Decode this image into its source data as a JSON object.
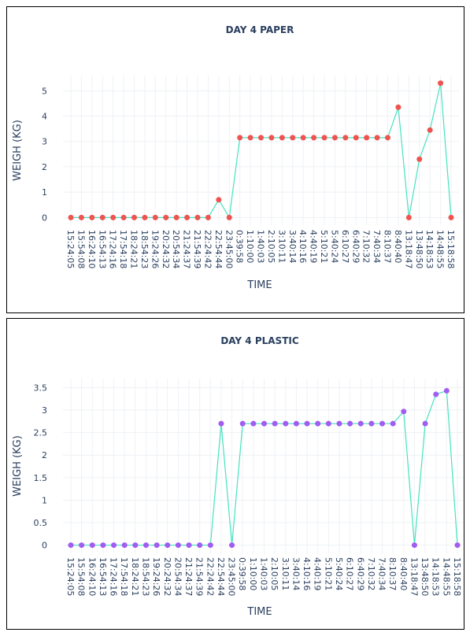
{
  "chart_data": [
    {
      "type": "line",
      "title": "DAY 4 PAPER",
      "x_label": "TIME",
      "y_label": "WEIGH (KG)",
      "categories": [
        "15:24:05",
        "15:54:08",
        "16:24:10",
        "16:54:13",
        "17:24:16",
        "17:54:18",
        "18:24:21",
        "18:54:23",
        "19:24:26",
        "20:24:32",
        "20:54:34",
        "21:24:37",
        "21:54:39",
        "22:24:42",
        "22:54:44",
        "23:45:00",
        "0:39:58",
        "1:10:00",
        "1:40:03",
        "2:10:05",
        "3:10:11",
        "3:40:14",
        "4:10:16",
        "4:40:19",
        "5:10:21",
        "5:40:24",
        "6:10:27",
        "6:40:29",
        "7:10:32",
        "7:40:34",
        "8:10:37",
        "8:40:40",
        "13:18:47",
        "13:48:50",
        "14:18:53",
        "14:48:55",
        "15:18:58"
      ],
      "series": [
        {
          "line_color": "#45e3bf",
          "color": "#f0534f",
          "values": [
            0,
            0,
            0,
            0,
            0,
            0,
            0,
            0,
            0,
            0,
            0,
            0,
            0,
            0,
            0.7,
            0,
            3.15,
            3.15,
            3.15,
            3.15,
            3.15,
            3.15,
            3.15,
            3.15,
            3.15,
            3.15,
            3.15,
            3.15,
            3.15,
            3.15,
            3.15,
            4.35,
            0,
            2.3,
            3.45,
            5.3,
            0
          ]
        }
      ],
      "ylim": [
        -0.3,
        5.6
      ],
      "yticks": [
        0,
        1,
        2,
        3,
        4,
        5
      ],
      "grid": true
    },
    {
      "type": "line",
      "title": "DAY 4 PLASTIC",
      "x_label": "TIME",
      "y_label": "WEIGH (KG)",
      "categories": [
        "15:24:05",
        "15:54:08",
        "16:24:10",
        "16:54:13",
        "17:24:16",
        "17:54:18",
        "18:24:21",
        "18:54:23",
        "19:24:26",
        "20:24:32",
        "20:54:34",
        "21:24:37",
        "21:54:39",
        "22:24:42",
        "22:54:44",
        "23:45:00",
        "0:39:58",
        "1:10:00",
        "1:40:03",
        "2:10:05",
        "3:10:11",
        "3:40:14",
        "4:10:16",
        "4:40:19",
        "5:10:21",
        "5:40:24",
        "6:10:27",
        "6:40:29",
        "7:10:32",
        "7:40:34",
        "8:10:37",
        "8:40:40",
        "13:18:47",
        "13:48:50",
        "14:18:53",
        "14:48:55",
        "15:18:58"
      ],
      "series": [
        {
          "line_color": "#45e3bf",
          "color": "#a25cf2",
          "values": [
            0,
            0,
            0,
            0,
            0,
            0,
            0,
            0,
            0,
            0,
            0,
            0,
            0,
            0,
            2.7,
            0,
            2.7,
            2.7,
            2.7,
            2.7,
            2.7,
            2.7,
            2.7,
            2.7,
            2.7,
            2.7,
            2.7,
            2.7,
            2.7,
            2.7,
            2.7,
            2.97,
            0,
            2.7,
            3.35,
            3.43,
            0
          ]
        }
      ],
      "ylim": [
        -0.2,
        3.7
      ],
      "yticks": [
        0,
        0.5,
        1,
        1.5,
        2,
        2.5,
        3,
        3.5
      ],
      "grid": true
    }
  ]
}
